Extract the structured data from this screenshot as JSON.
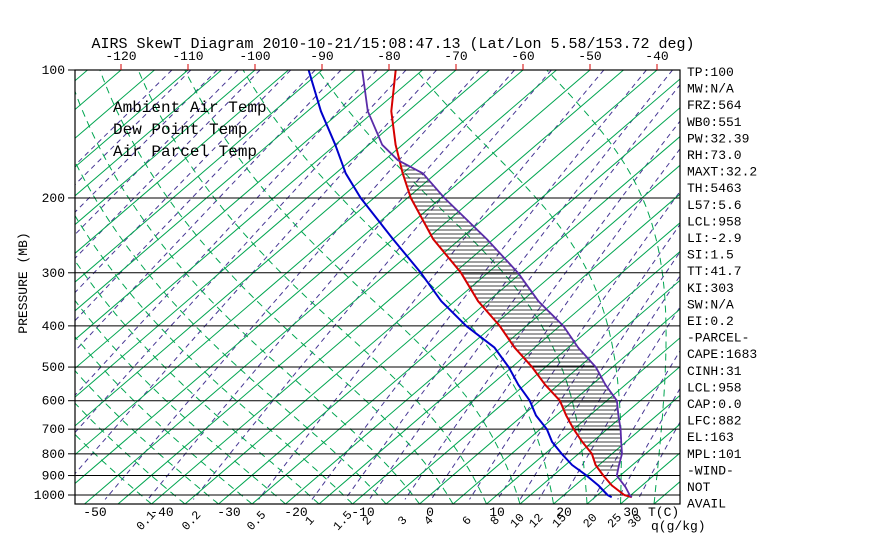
{
  "title": "AIRS SkewT Diagram 2010-10-21/15:08:47.13 (Lat/Lon 5.58/153.72 deg)",
  "colors": {
    "ambient": "#d60000",
    "dew_point": "#0000cc",
    "parcel": "#5a2ca8",
    "isotherm_green": "#00a550",
    "mixing_purple": "#473794",
    "tick_red": "#d60000",
    "axis_black": "#000000"
  },
  "legend": {
    "items": [
      {
        "label": "Ambient Air Temp",
        "color": "#d60000"
      },
      {
        "label": "Dew Point Temp",
        "color": "#0000cc"
      },
      {
        "label": "Air Parcel Temp",
        "color": "#5a2ca8"
      }
    ]
  },
  "axes": {
    "pressure": {
      "label": "PRESSURE (MB)",
      "ticks": [
        100,
        200,
        300,
        400,
        500,
        600,
        700,
        800,
        900,
        1000
      ]
    },
    "temp_top": {
      "ticks": [
        -120,
        -110,
        -100,
        -90,
        -80,
        -70,
        -60,
        -50,
        -40
      ]
    },
    "temp_bottom": {
      "ticks": [
        -50,
        -40,
        -30,
        -20,
        -10,
        0,
        10,
        20,
        30
      ],
      "unit_label": "T(C)"
    },
    "mixing": {
      "tick_labels": [
        "0.1",
        "0.2",
        "0.5",
        "1",
        "1.5",
        "2",
        "3",
        "4",
        "6",
        "8",
        "10",
        "12",
        "15",
        "20",
        "25",
        "30"
      ],
      "tick_values": [
        0.1,
        0.2,
        0.5,
        1,
        1.5,
        2,
        3,
        4,
        6,
        8,
        10,
        12,
        15,
        20,
        25,
        30
      ],
      "unit_label": "q(g/kg)"
    }
  },
  "stats": [
    "TP:100",
    "MW:N/A",
    "FRZ:564",
    "WB0:551",
    "PW:32.39",
    "RH:73.0",
    "MAXT:32.2",
    "TH:5463",
    "L57:5.6",
    "LCL:958",
    "LI:-2.9",
    "SI:1.5",
    "TT:41.7",
    "KI:303",
    "SW:N/A",
    "EI:0.2",
    "-PARCEL-",
    "CAPE:1683",
    "CINH:31",
    "LCL:958",
    "CAP:0.0",
    "LFC:882",
    "EL:163",
    "MPL:101",
    "-WIND-",
    "NOT",
    "AVAIL"
  ],
  "chart_data": {
    "type": "line",
    "projection": "skew-t-log-p",
    "y_axis": {
      "label": "PRESSURE (MB)",
      "scale": "log",
      "range_hpa": [
        100,
        1050
      ],
      "ticks": [
        100,
        200,
        300,
        400,
        500,
        600,
        700,
        800,
        900,
        1000
      ]
    },
    "x_axis_top_c": [
      -120,
      -110,
      -100,
      -90,
      -80,
      -70,
      -60,
      -50,
      -40
    ],
    "x_axis_bottom_c": [
      -50,
      -40,
      -30,
      -20,
      -10,
      0,
      10,
      20,
      30
    ],
    "series": [
      {
        "name": "Ambient Air Temp",
        "color": "#d60000",
        "points_p_t": [
          [
            1012,
            30.5
          ],
          [
            1000,
            29
          ],
          [
            950,
            25.5
          ],
          [
            900,
            22.5
          ],
          [
            850,
            19.5
          ],
          [
            800,
            17
          ],
          [
            750,
            13.5
          ],
          [
            700,
            10
          ],
          [
            650,
            6.5
          ],
          [
            600,
            3
          ],
          [
            550,
            -2
          ],
          [
            500,
            -7
          ],
          [
            450,
            -13
          ],
          [
            400,
            -19
          ],
          [
            350,
            -26.5
          ],
          [
            300,
            -34
          ],
          [
            250,
            -44
          ],
          [
            200,
            -54.5
          ],
          [
            175,
            -60
          ],
          [
            150,
            -66
          ],
          [
            125,
            -72.5
          ],
          [
            100,
            -79
          ]
        ]
      },
      {
        "name": "Dew Point Temp",
        "color": "#0000cc",
        "points_p_t": [
          [
            1012,
            27.5
          ],
          [
            1000,
            26.5
          ],
          [
            950,
            23.5
          ],
          [
            900,
            20
          ],
          [
            850,
            16
          ],
          [
            800,
            12.5
          ],
          [
            750,
            9
          ],
          [
            700,
            6
          ],
          [
            650,
            2
          ],
          [
            600,
            -1.5
          ],
          [
            550,
            -6
          ],
          [
            500,
            -10.5
          ],
          [
            450,
            -16
          ],
          [
            400,
            -24
          ],
          [
            350,
            -32
          ],
          [
            300,
            -40
          ],
          [
            250,
            -50
          ],
          [
            200,
            -62
          ],
          [
            175,
            -68.5
          ],
          [
            150,
            -75
          ],
          [
            125,
            -83
          ],
          [
            100,
            -92
          ]
        ]
      },
      {
        "name": "Air Parcel Temp",
        "color": "#5a2ca8",
        "points_p_t": [
          [
            1012,
            30.5
          ],
          [
            1000,
            29.8
          ],
          [
            958,
            27.8
          ],
          [
            900,
            24.5
          ],
          [
            850,
            23
          ],
          [
            800,
            21.5
          ],
          [
            750,
            19.3
          ],
          [
            700,
            17
          ],
          [
            650,
            14.3
          ],
          [
            600,
            11.5
          ],
          [
            550,
            7
          ],
          [
            500,
            2.5
          ],
          [
            450,
            -3.5
          ],
          [
            400,
            -9.5
          ],
          [
            350,
            -17.5
          ],
          [
            300,
            -25.5
          ],
          [
            250,
            -36
          ],
          [
            200,
            -49.5
          ],
          [
            175,
            -57
          ],
          [
            163,
            -63
          ],
          [
            150,
            -68
          ],
          [
            125,
            -76
          ],
          [
            100,
            -84
          ]
        ]
      }
    ],
    "background": {
      "isotherms_c": {
        "min": -125,
        "max": 35,
        "step": 5,
        "color": "#00a550",
        "style": "solid"
      },
      "moist_adiabats_c": {
        "min": -40,
        "max": 45,
        "step": 5,
        "color": "#00a550",
        "style": "dashed"
      },
      "mixing_ratio_gkg": {
        "values": [
          1e-05,
          2e-05,
          5e-05,
          0.0001,
          0.0002,
          0.0005,
          0.001,
          0.002,
          0.005,
          0.01,
          0.02,
          0.05,
          0.1,
          0.2,
          0.5,
          1,
          1.5,
          2,
          3,
          4,
          6,
          8,
          10,
          12,
          15,
          20,
          25,
          30
        ],
        "color": "#473794",
        "style": "dashed"
      }
    },
    "cape_hatch": {
      "between": [
        "Ambient Air Temp",
        "Air Parcel Temp"
      ],
      "p_top_hpa": 164,
      "p_bottom_hpa": 884
    }
  }
}
